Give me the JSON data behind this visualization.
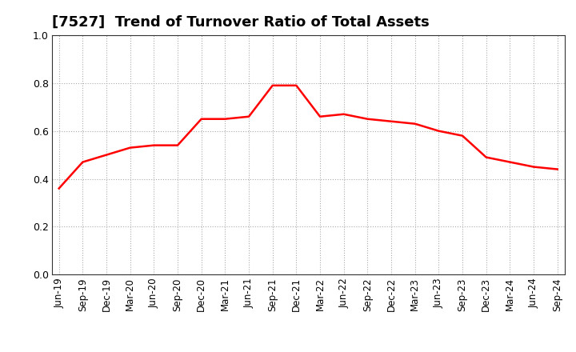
{
  "title": "[7527]  Trend of Turnover Ratio of Total Assets",
  "x_labels": [
    "Jun-19",
    "Sep-19",
    "Dec-19",
    "Mar-20",
    "Jun-20",
    "Sep-20",
    "Dec-20",
    "Mar-21",
    "Jun-21",
    "Sep-21",
    "Dec-21",
    "Mar-22",
    "Jun-22",
    "Sep-22",
    "Dec-22",
    "Mar-23",
    "Jun-23",
    "Sep-23",
    "Dec-23",
    "Mar-24",
    "Jun-24",
    "Sep-24"
  ],
  "y_values": [
    0.36,
    0.47,
    0.5,
    0.53,
    0.54,
    0.54,
    0.65,
    0.65,
    0.66,
    0.79,
    0.79,
    0.66,
    0.67,
    0.65,
    0.64,
    0.63,
    0.6,
    0.58,
    0.49,
    0.47,
    0.45,
    0.44
  ],
  "line_color": "#ff0000",
  "line_width": 1.8,
  "ylim": [
    0.0,
    1.0
  ],
  "yticks": [
    0.0,
    0.2,
    0.4,
    0.6,
    0.8,
    1.0
  ],
  "grid_color": "#aaaaaa",
  "bg_color": "#ffffff",
  "title_fontsize": 13,
  "tick_fontsize": 8.5
}
